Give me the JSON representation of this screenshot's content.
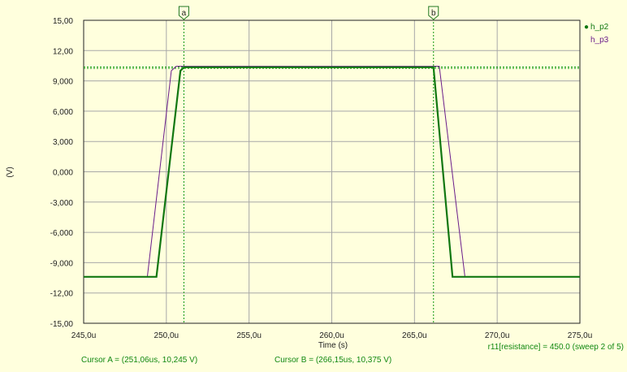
{
  "chart_data": {
    "type": "line",
    "xlabel": "Time (s)",
    "ylabel": "(V)",
    "xlim": [
      245,
      275
    ],
    "ylim": [
      -15,
      15
    ],
    "x_unit": "u",
    "x_ticks": [
      "245,0u",
      "250,0u",
      "255,0u",
      "260,0u",
      "265,0u",
      "270,0u",
      "275,0u"
    ],
    "y_ticks": [
      "15,00",
      "12,00",
      "9,000",
      "6,000",
      "3,000",
      "0,000",
      "-3,000",
      "-6,000",
      "-9,000",
      "-12,00",
      "-15,00"
    ],
    "x_tick_values": [
      245,
      250,
      255,
      260,
      265,
      270,
      275
    ],
    "y_tick_values": [
      15,
      12,
      9,
      6,
      3,
      0,
      -3,
      -6,
      -9,
      -12,
      -15
    ],
    "grid": true,
    "legend_position": "top-right",
    "series": [
      {
        "name": "h_p2",
        "color": "#117711",
        "x": [
          245,
          249.4,
          250.85,
          251.06,
          266.15,
          267.3,
          275
        ],
        "y": [
          -10.4,
          -10.4,
          10.0,
          10.35,
          10.35,
          -10.4,
          -10.4
        ]
      },
      {
        "name": "h_p3",
        "color": "#6a1c8a",
        "x": [
          245,
          248.85,
          250.3,
          250.6,
          266.5,
          268.05,
          275
        ],
        "y": [
          -10.4,
          -10.4,
          10.0,
          10.45,
          10.45,
          -10.4,
          -10.4
        ]
      }
    ],
    "cursors": [
      {
        "label": "a",
        "x": 251.06,
        "y": 10.245
      },
      {
        "label": "b",
        "x": 266.15,
        "y": 10.375
      }
    ]
  },
  "legend": {
    "marker": "●"
  },
  "status": {
    "cursor_a": "Cursor A = (251,06us, 10,245 V)",
    "cursor_b": "Cursor B = (266,15us, 10,375 V)",
    "sweep": "r11[resistance] = 450.0  (sweep 2 of 5)"
  },
  "colors": {
    "background": "#ffffdd",
    "grid": "#a8a8a8",
    "cursor": "#119911",
    "status_text": "#118811"
  }
}
